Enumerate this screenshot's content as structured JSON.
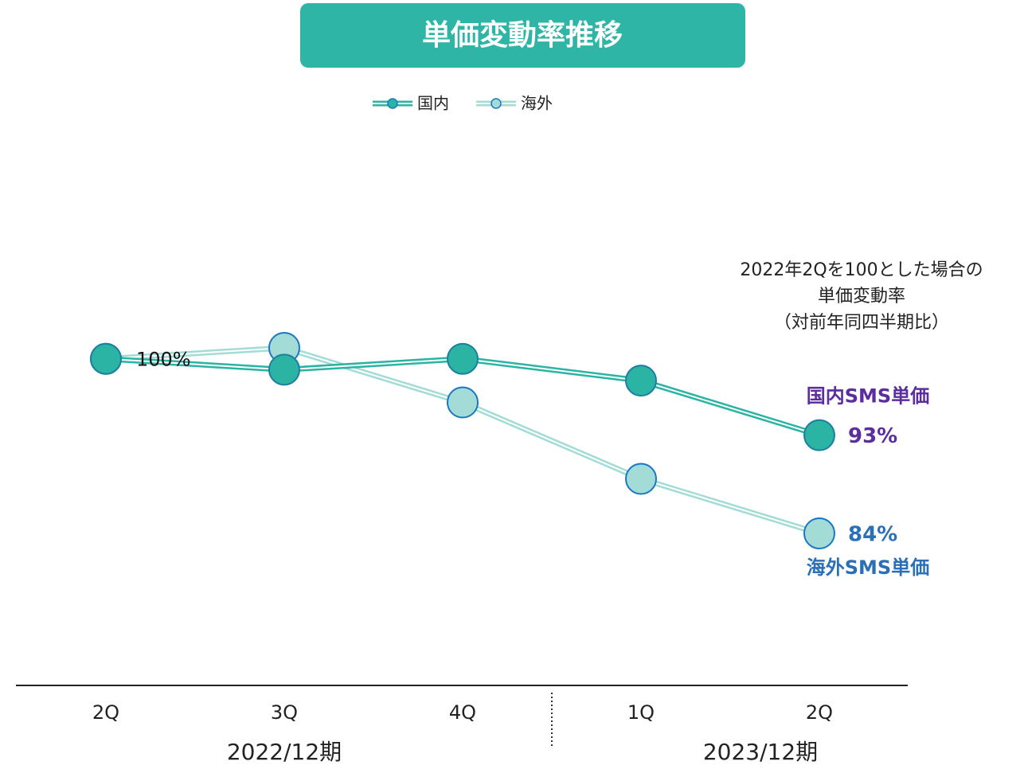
{
  "chart_data": {
    "type": "line",
    "title": "単価変動率推移",
    "categories": [
      "2Q",
      "3Q",
      "4Q",
      "1Q",
      "2Q"
    ],
    "groups": [
      "2022/12期",
      "2023/12期"
    ],
    "note": [
      "2022年2Qを100とした場合の",
      "単価変動率",
      "（対前年同四半期比）"
    ],
    "series": [
      {
        "name": "国内",
        "label": "国内SMS単価",
        "color": "#2bb3a3",
        "label_color": "#5b2d9e",
        "values": [
          100,
          99,
          100,
          98,
          93
        ],
        "value_labels": [
          "100%",
          null,
          null,
          null,
          "93%"
        ]
      },
      {
        "name": "海外",
        "label": "海外SMS単価",
        "color": "#a3dcd6",
        "label_color": "#2a6fb8",
        "values": [
          100,
          101,
          96,
          89,
          84
        ],
        "value_labels": [
          null,
          null,
          null,
          null,
          "84%"
        ]
      }
    ],
    "legend": "top"
  }
}
